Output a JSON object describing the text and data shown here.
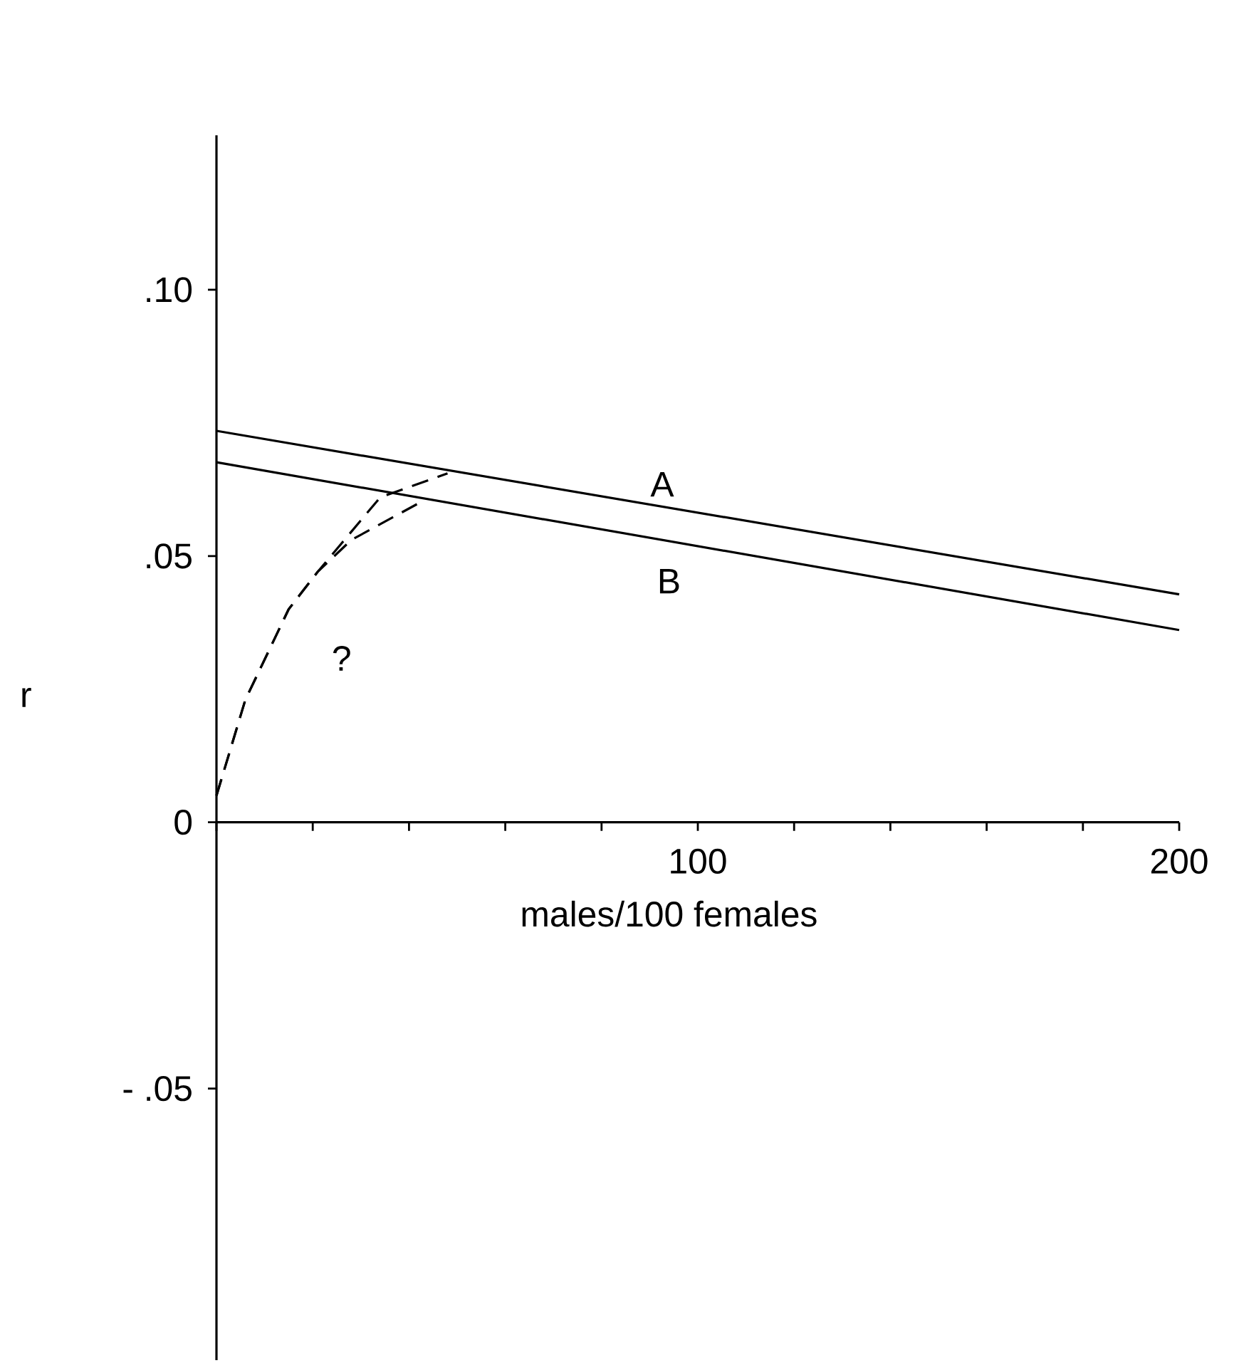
{
  "chart_data": {
    "type": "line",
    "xlabel": "males/100 females",
    "ylabel": "r",
    "xlim": [
      0,
      200
    ],
    "ylim": [
      -0.101,
      0.129
    ],
    "xticks": [
      {
        "value": 0,
        "label": null
      },
      {
        "value": 20,
        "label": null
      },
      {
        "value": 40,
        "label": null
      },
      {
        "value": 60,
        "label": null
      },
      {
        "value": 80,
        "label": null
      },
      {
        "value": 100,
        "label": "100"
      },
      {
        "value": 120,
        "label": null
      },
      {
        "value": 140,
        "label": null
      },
      {
        "value": 160,
        "label": null
      },
      {
        "value": 180,
        "label": null
      },
      {
        "value": 200,
        "label": "200"
      }
    ],
    "yticks": [
      {
        "value": -0.05,
        "label": "- .05"
      },
      {
        "value": 0,
        "label": "0"
      },
      {
        "value": 0.05,
        "label": ".05"
      },
      {
        "value": 0.1,
        "label": ".10"
      }
    ],
    "marker": "none",
    "series": [
      {
        "color": "#000000",
        "line_style": "solid",
        "x": [
          0,
          200
        ],
        "values": [
          0.0735,
          0.0428
        ]
      },
      {
        "color": "#000000",
        "line_style": "solid",
        "x": [
          0,
          200
        ],
        "values": [
          0.0676,
          0.0361
        ]
      },
      {
        "color": "#000000",
        "line_style": "dashed",
        "x": [
          0,
          6,
          15,
          21,
          34,
          48
        ],
        "values": [
          0.005,
          0.023,
          0.04,
          0.047,
          0.061,
          0.0655
        ]
      },
      {
        "color": "#000000",
        "line_style": "dashed",
        "x": [
          0,
          6,
          15,
          21,
          28,
          43
        ],
        "values": [
          0.005,
          0.023,
          0.04,
          0.047,
          0.053,
          0.0604
        ]
      }
    ],
    "annotations": [
      "A",
      "B",
      "?"
    ]
  }
}
